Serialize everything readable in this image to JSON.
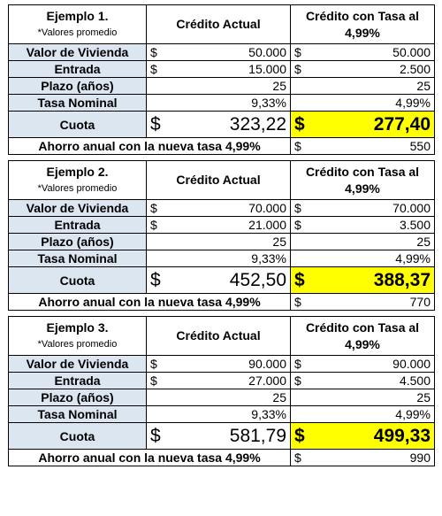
{
  "examples": [
    {
      "header": {
        "title": "Ejemplo 1.",
        "note": "*Valores promedio",
        "col2": "Crédito Actual",
        "col3": "Crédito con Tasa al 4,99%"
      },
      "rows": [
        {
          "label": "Valor de  Vivienda",
          "actual": {
            "currency": "$",
            "amount": "50.000"
          },
          "nueva": {
            "currency": "$",
            "amount": "50.000"
          }
        },
        {
          "label": "Entrada",
          "actual": {
            "currency": "$",
            "amount": "15.000"
          },
          "nueva": {
            "currency": "$",
            "amount": "2.500"
          }
        },
        {
          "label": "Plazo (años)",
          "actual": {
            "amount": "25"
          },
          "nueva": {
            "amount": "25"
          }
        },
        {
          "label": "Tasa Nominal",
          "actual": {
            "amount": "9,33%"
          },
          "nueva": {
            "amount": "4,99%"
          }
        }
      ],
      "cuota": {
        "label": "Cuota",
        "actual": {
          "currency": "$",
          "amount": "323,22"
        },
        "nueva": {
          "currency": "$",
          "amount": "277,40"
        }
      },
      "savings": {
        "label": "Ahorro anual con la nueva tasa 4,99%",
        "currency": "$",
        "amount": "550"
      }
    },
    {
      "header": {
        "title": "Ejemplo 2.",
        "note": "*Valores promedio",
        "col2": "Crédito Actual",
        "col3": "Crédito con Tasa al 4,99%"
      },
      "rows": [
        {
          "label": "Valor de  Vivienda",
          "actual": {
            "currency": "$",
            "amount": "70.000"
          },
          "nueva": {
            "currency": "$",
            "amount": "70.000"
          }
        },
        {
          "label": "Entrada",
          "actual": {
            "currency": "$",
            "amount": "21.000"
          },
          "nueva": {
            "currency": "$",
            "amount": "3.500"
          }
        },
        {
          "label": "Plazo (años)",
          "actual": {
            "amount": "25"
          },
          "nueva": {
            "amount": "25"
          }
        },
        {
          "label": "Tasa Nominal",
          "actual": {
            "amount": "9,33%"
          },
          "nueva": {
            "amount": "4,99%"
          }
        }
      ],
      "cuota": {
        "label": "Cuota",
        "actual": {
          "currency": "$",
          "amount": "452,50"
        },
        "nueva": {
          "currency": "$",
          "amount": "388,37"
        }
      },
      "savings": {
        "label": "Ahorro anual con la nueva tasa 4,99%",
        "currency": "$",
        "amount": "770"
      }
    },
    {
      "header": {
        "title": "Ejemplo 3.",
        "note": "*Valores promedio",
        "col2": "Crédito Actual",
        "col3": "Crédito con Tasa al 4,99%"
      },
      "rows": [
        {
          "label": "Valor de  Vivienda",
          "actual": {
            "currency": "$",
            "amount": "90.000"
          },
          "nueva": {
            "currency": "$",
            "amount": "90.000"
          }
        },
        {
          "label": "Entrada",
          "actual": {
            "currency": "$",
            "amount": "27.000"
          },
          "nueva": {
            "currency": "$",
            "amount": "4.500"
          }
        },
        {
          "label": "Plazo (años)",
          "actual": {
            "amount": "25"
          },
          "nueva": {
            "amount": "25"
          }
        },
        {
          "label": "Tasa Nominal",
          "actual": {
            "amount": "9,33%"
          },
          "nueva": {
            "amount": "4,99%"
          }
        }
      ],
      "cuota": {
        "label": "Cuota",
        "actual": {
          "currency": "$",
          "amount": "581,79"
        },
        "nueva": {
          "currency": "$",
          "amount": "499,33"
        }
      },
      "savings": {
        "label": "Ahorro anual con la nueva tasa 4,99%",
        "currency": "$",
        "amount": "990"
      }
    }
  ]
}
